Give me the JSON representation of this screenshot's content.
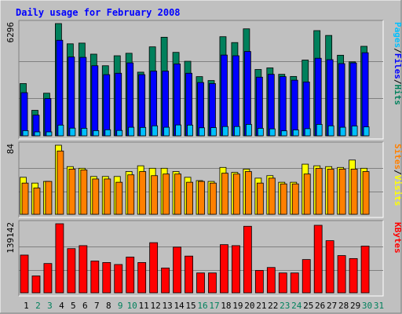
{
  "chart_data": {
    "type": "bar",
    "title": "Daily usage for February 2008",
    "colors": {
      "background": "#c0c0c0",
      "frame_light": "#ffffff",
      "frame_dark": "#808080",
      "title": "#0000ff",
      "hits": "#00805c",
      "files": "#0000ff",
      "pages": "#00c0ff",
      "visits": "#ffff00",
      "sites": "#ff8000",
      "kbytes": "#ff0000",
      "weekday_label": "#000000",
      "weekend_label": "#00805c"
    },
    "x": [
      "1",
      "2",
      "3",
      "4",
      "5",
      "6",
      "7",
      "8",
      "9",
      "10",
      "11",
      "12",
      "13",
      "14",
      "15",
      "16",
      "17",
      "18",
      "19",
      "20",
      "21",
      "22",
      "23",
      "24",
      "25",
      "26",
      "27",
      "28",
      "29",
      "30",
      "31"
    ],
    "weekend_days": [
      "2",
      "3",
      "9",
      "10",
      "16",
      "17",
      "23",
      "24",
      "30",
      "31"
    ],
    "panels": [
      {
        "id": "requests",
        "ymax_label": "6296",
        "ymax": 6296,
        "legend": [
          "Pages",
          "/",
          "Files",
          "/",
          "Hits"
        ],
        "series": [
          {
            "name": "Hits",
            "color": "#00805c",
            "values": [
              2930,
              1430,
              2390,
              6296,
              5160,
              5200,
              4580,
              3930,
              4490,
              4630,
              3570,
              4990,
              5530,
              4680,
              4180,
              3320,
              3100,
              5560,
              5230,
              6000,
              3720,
              3810,
              3450,
              3330,
              4250,
              5900,
              5630,
              4520,
              4150,
              5020,
              null
            ]
          },
          {
            "name": "Files",
            "color": "#0000ff",
            "values": [
              2420,
              1160,
              2090,
              5360,
              4420,
              4400,
              3930,
              3430,
              3510,
              4090,
              3430,
              3630,
              3630,
              4030,
              3510,
              2990,
              2930,
              4530,
              4490,
              4730,
              3290,
              3450,
              3320,
              3120,
              3020,
              4350,
              4270,
              4050,
              4090,
              4660,
              null
            ]
          },
          {
            "name": "Pages",
            "color": "#00c0ff",
            "values": [
              290,
              220,
              220,
              600,
              430,
              420,
              290,
              340,
              300,
              480,
              470,
              560,
              480,
              610,
              600,
              450,
              460,
              520,
              520,
              640,
              420,
              390,
              280,
              330,
              400,
              640,
              560,
              480,
              550,
              500,
              null
            ]
          }
        ]
      },
      {
        "id": "visits",
        "ymax_label": "84",
        "ymax": 84,
        "legend": [
          "Sites",
          "/",
          "Visits"
        ],
        "series": [
          {
            "name": "Visits",
            "color": "#ffff00",
            "values": [
              45,
              38,
              40,
              84,
              58,
              56,
              46,
              46,
              46,
              52,
              59,
              56,
              56,
              52,
              45,
              41,
              40,
              57,
              51,
              55,
              44,
              47,
              39,
              39,
              61,
              59,
              58,
              57,
              66,
              56,
              null
            ]
          },
          {
            "name": "Sites",
            "color": "#ff8000",
            "values": [
              38,
              32,
              40,
              77,
              55,
              54,
              43,
              43,
              39,
              48,
              52,
              47,
              49,
              49,
              39,
              40,
              38,
              50,
              49,
              52,
              38,
              44,
              37,
              37,
              49,
              56,
              55,
              55,
              55,
              52,
              null
            ]
          }
        ]
      },
      {
        "id": "kbytes",
        "ymax_label": "139142",
        "ymax": 139142,
        "legend": [
          "KBytes"
        ],
        "series": [
          {
            "name": "KBytes",
            "color": "#ff0000",
            "values": [
              76000,
              34000,
              59000,
              139142,
              89000,
              95000,
              64000,
              61000,
              57000,
              72000,
              61000,
              101000,
              50000,
              92000,
              74000,
              40000,
              40000,
              97000,
              95000,
              134000,
              45000,
              51000,
              40000,
              40000,
              67000,
              136000,
              105000,
              75000,
              69000,
              94000,
              null
            ]
          }
        ]
      }
    ]
  }
}
